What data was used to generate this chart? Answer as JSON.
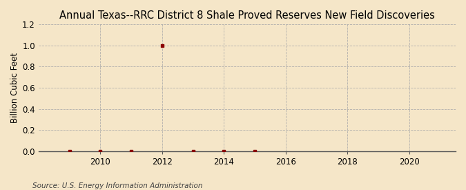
{
  "title": "Annual Texas--RRC District 8 Shale Proved Reserves New Field Discoveries",
  "ylabel": "Billion Cubic Feet",
  "source": "Source: U.S. Energy Information Administration",
  "background_color": "#f5e6c8",
  "years": [
    2009,
    2010,
    2011,
    2012,
    2013,
    2014,
    2015
  ],
  "values": [
    0.0,
    0.0,
    0.0,
    1.0,
    0.0,
    0.0,
    0.0
  ],
  "marker_color": "#8b0000",
  "xlim": [
    2008.0,
    2021.5
  ],
  "ylim": [
    0.0,
    1.2
  ],
  "yticks": [
    0.0,
    0.2,
    0.4,
    0.6,
    0.8,
    1.0,
    1.2
  ],
  "xticks": [
    2010,
    2012,
    2014,
    2016,
    2018,
    2020
  ],
  "grid_color": "#aaaaaa",
  "title_fontsize": 10.5,
  "axis_fontsize": 8.5,
  "tick_fontsize": 8.5,
  "source_fontsize": 7.5
}
